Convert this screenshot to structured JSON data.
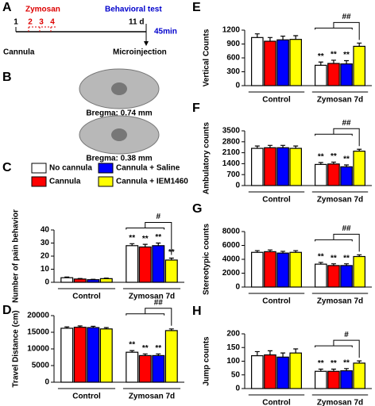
{
  "timeline": {
    "panel_label": "A",
    "start": "1",
    "zymosan_label": "Zymosan",
    "days": [
      "2",
      "3",
      "4"
    ],
    "behavioral_label": "Behavioral test",
    "end": "11 d",
    "interval": "45min",
    "cannula": "Cannula",
    "microinjection": "Microinjection"
  },
  "sections": {
    "panel_label": "B",
    "captions": [
      "Bregma: 0.74 mm",
      "Bregma: 0.38 mm"
    ]
  },
  "legend": [
    {
      "name": "No cannula",
      "color": "#ffffff"
    },
    {
      "name": "Cannula",
      "color": "#ff0000"
    },
    {
      "name": "Cannula + Saline",
      "color": "#0000ff"
    },
    {
      "name": "Cannula + IEM1460",
      "color": "#ffff00"
    }
  ],
  "chart_data": [
    {
      "type": "bar",
      "panel_label": "C",
      "ylabel": "Number of pain behavior",
      "categories": [
        "Control",
        "Zymosan 7d"
      ],
      "ylim": [
        0,
        40
      ],
      "yticks": [
        0,
        10,
        20,
        30,
        40
      ],
      "bracket_label": "#",
      "series": [
        {
          "values": [
            3.5,
            28
          ],
          "errors": [
            0.5,
            1.5
          ],
          "annotations": [
            null,
            "**"
          ]
        },
        {
          "values": [
            2.5,
            27
          ],
          "errors": [
            0.4,
            2
          ],
          "annotations": [
            null,
            "**"
          ]
        },
        {
          "values": [
            2,
            28
          ],
          "errors": [
            0.3,
            2
          ],
          "annotations": [
            null,
            "**"
          ]
        },
        {
          "values": [
            2.8,
            17
          ],
          "errors": [
            0.4,
            1.5
          ],
          "annotations": [
            null,
            "**"
          ]
        }
      ]
    },
    {
      "type": "bar",
      "panel_label": "D",
      "ylabel": "Travel Distance (cm)",
      "categories": [
        "Control",
        "Zymosan 7d"
      ],
      "ylim": [
        0,
        20000
      ],
      "yticks": [
        0,
        5000,
        10000,
        15000,
        20000
      ],
      "bracket_label": "##",
      "series": [
        {
          "values": [
            16200,
            9000
          ],
          "errors": [
            400,
            500
          ],
          "annotations": [
            null,
            "**"
          ]
        },
        {
          "values": [
            16500,
            8000
          ],
          "errors": [
            400,
            500
          ],
          "annotations": [
            null,
            "**"
          ]
        },
        {
          "values": [
            16400,
            8000
          ],
          "errors": [
            400,
            500
          ],
          "annotations": [
            null,
            "**"
          ]
        },
        {
          "values": [
            16000,
            15500
          ],
          "errors": [
            400,
            500
          ],
          "annotations": [
            null,
            null
          ]
        }
      ]
    },
    {
      "type": "bar",
      "panel_label": "E",
      "ylabel": "Vertical Counts",
      "categories": [
        "Control",
        "Zymosan 7d"
      ],
      "ylim": [
        0,
        1200
      ],
      "yticks": [
        0,
        300,
        600,
        900,
        1200
      ],
      "bracket_label": "##",
      "series": [
        {
          "values": [
            1040,
            440
          ],
          "errors": [
            80,
            70
          ],
          "annotations": [
            null,
            "**"
          ]
        },
        {
          "values": [
            960,
            480
          ],
          "errors": [
            80,
            70
          ],
          "annotations": [
            null,
            "**"
          ]
        },
        {
          "values": [
            990,
            470
          ],
          "errors": [
            80,
            70
          ],
          "annotations": [
            null,
            "**"
          ]
        },
        {
          "values": [
            1000,
            850
          ],
          "errors": [
            80,
            70
          ],
          "annotations": [
            null,
            null
          ]
        }
      ]
    },
    {
      "type": "bar",
      "panel_label": "F",
      "ylabel": "Ambulatory counts",
      "categories": [
        "Control",
        "Zymosan 7d"
      ],
      "ylim": [
        0,
        3500
      ],
      "yticks": [
        0,
        700,
        1400,
        2100,
        2800,
        3500
      ],
      "bracket_label": "##",
      "series": [
        {
          "values": [
            2380,
            1350
          ],
          "errors": [
            150,
            120
          ],
          "annotations": [
            null,
            "**"
          ]
        },
        {
          "values": [
            2420,
            1380
          ],
          "errors": [
            150,
            120
          ],
          "annotations": [
            null,
            "**"
          ]
        },
        {
          "values": [
            2420,
            1200
          ],
          "errors": [
            150,
            120
          ],
          "annotations": [
            null,
            "**"
          ]
        },
        {
          "values": [
            2380,
            2200
          ],
          "errors": [
            150,
            120
          ],
          "annotations": [
            null,
            null
          ]
        }
      ]
    },
    {
      "type": "bar",
      "panel_label": "G",
      "ylabel": "Stereotypic counts",
      "categories": [
        "Control",
        "Zymosan 7d"
      ],
      "ylim": [
        0,
        8000
      ],
      "yticks": [
        0,
        2000,
        4000,
        6000,
        8000
      ],
      "bracket_label": "##",
      "series": [
        {
          "values": [
            5000,
            3300
          ],
          "errors": [
            250,
            250
          ],
          "annotations": [
            null,
            "**"
          ]
        },
        {
          "values": [
            5100,
            3100
          ],
          "errors": [
            250,
            250
          ],
          "annotations": [
            null,
            "**"
          ]
        },
        {
          "values": [
            4900,
            3100
          ],
          "errors": [
            250,
            250
          ],
          "annotations": [
            null,
            "**"
          ]
        },
        {
          "values": [
            5000,
            4400
          ],
          "errors": [
            250,
            250
          ],
          "annotations": [
            null,
            null
          ]
        }
      ]
    },
    {
      "type": "bar",
      "panel_label": "H",
      "ylabel": "Jump counts",
      "categories": [
        "Control",
        "Zymosan 7d"
      ],
      "ylim": [
        0,
        200
      ],
      "yticks": [
        0,
        50,
        100,
        150,
        200
      ],
      "bracket_label": "#",
      "series": [
        {
          "values": [
            120,
            63
          ],
          "errors": [
            15,
            8
          ],
          "annotations": [
            null,
            "**"
          ]
        },
        {
          "values": [
            123,
            63
          ],
          "errors": [
            15,
            8
          ],
          "annotations": [
            null,
            "**"
          ]
        },
        {
          "values": [
            115,
            65
          ],
          "errors": [
            15,
            8
          ],
          "annotations": [
            null,
            "**"
          ]
        },
        {
          "values": [
            130,
            93
          ],
          "errors": [
            15,
            8
          ],
          "annotations": [
            null,
            null
          ]
        }
      ]
    }
  ]
}
